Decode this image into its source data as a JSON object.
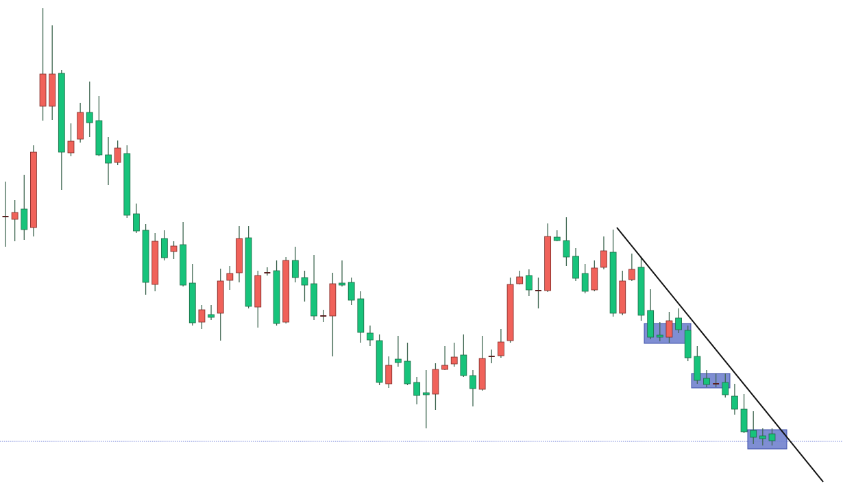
{
  "chart_data": {
    "type": "candlestick",
    "ylim": [
      0,
      731
    ],
    "up_color": "#f0625a",
    "down_color": "#17c37b",
    "wick_color": "#3e6650",
    "doji_color": "#5a2020",
    "price_line": 87,
    "price_line_color": "#6f7fd8",
    "open": [
      415,
      411,
      426,
      399,
      576,
      576,
      624,
      508,
      528,
      567,
      555,
      505,
      494,
      507,
      419,
      395,
      316,
      383,
      364,
      374,
      318,
      261,
      272,
      274,
      322,
      333,
      384,
      283,
      333,
      336,
      261,
      351,
      326,
      317,
      270,
      270,
      318,
      319,
      295,
      245,
      234,
      171,
      207,
      204,
      173,
      158,
      156,
      192,
      200,
      213,
      183,
      163,
      211,
      212,
      234,
      317,
      329,
      307,
      307,
      385,
      380,
      357,
      332,
      308,
      341,
      363,
      274,
      323,
      341,
      278,
      242,
      239,
      267,
      249,
      211,
      179,
      171,
      173,
      153,
      134,
      103,
      95,
      98
    ],
    "high": [
      466,
      439,
      476,
      519,
      719,
      694,
      629,
      551,
      581,
      612,
      591,
      531,
      526,
      519,
      434,
      404,
      391,
      395,
      379,
      407,
      346,
      286,
      286,
      339,
      343,
      401,
      401,
      336,
      341,
      351,
      356,
      371,
      336,
      359,
      279,
      333,
      351,
      326,
      306,
      256,
      243,
      211,
      241,
      231,
      181,
      191,
      201,
      226,
      231,
      243,
      191,
      241,
      221,
      251,
      326,
      336,
      338,
      326,
      405,
      395,
      414,
      369,
      346,
      351,
      386,
      396,
      336,
      361,
      356,
      309,
      261,
      276,
      281,
      256,
      226,
      191,
      186,
      186,
      171,
      156,
      131,
      106,
      106
    ],
    "low": [
      371,
      379,
      381,
      386,
      555,
      556,
      454,
      503,
      523,
      531,
      503,
      461,
      490,
      413,
      391,
      301,
      306,
      351,
      353,
      313,
      256,
      251,
      264,
      234,
      308,
      319,
      281,
      253,
      329,
      256,
      259,
      319,
      291,
      264,
      261,
      211,
      313,
      286,
      231,
      226,
      169,
      165,
      196,
      169,
      141,
      106,
      133,
      191,
      196,
      181,
      138,
      161,
      201,
      209,
      231,
      316,
      299,
      281,
      305,
      379,
      343,
      321,
      303,
      306,
      338,
      269,
      271,
      321,
      263,
      236,
      233,
      231,
      245,
      204,
      171,
      166,
      166,
      151,
      126,
      99,
      83,
      81,
      81
    ],
    "close": [
      415,
      421,
      396,
      509,
      623,
      623,
      509,
      525,
      567,
      552,
      505,
      493,
      515,
      417,
      394,
      319,
      379,
      355,
      372,
      315,
      260,
      279,
      268,
      321,
      332,
      383,
      284,
      329,
      333,
      259,
      351,
      326,
      315,
      270,
      270,
      317,
      315,
      293,
      246,
      235,
      173,
      198,
      202,
      171,
      154,
      155,
      192,
      198,
      210,
      183,
      164,
      208,
      211,
      232,
      316,
      327,
      308,
      307,
      386,
      380,
      356,
      325,
      306,
      340,
      365,
      274,
      321,
      338,
      271,
      239,
      239,
      263,
      250,
      209,
      176,
      170,
      171,
      155,
      134,
      101,
      93,
      91,
      88
    ]
  }
}
